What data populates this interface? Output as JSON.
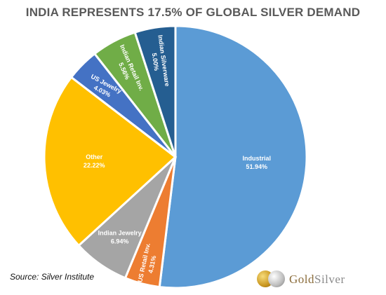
{
  "chart_data": {
    "type": "pie",
    "title": "INDIA REPRESENTS 17.5% OF GLOBAL SILVER DEMAND",
    "slices": [
      {
        "label": "Industrial",
        "value_label": "51.94%",
        "value": 51.94,
        "color": "#5b9bd5"
      },
      {
        "label": "US Retail Inv.",
        "value_label": "4.31%",
        "value": 4.31,
        "color": "#ed7d31"
      },
      {
        "label": "Indian Jewelry",
        "value_label": "6.94%",
        "value": 6.94,
        "color": "#a5a5a5"
      },
      {
        "label": "Other",
        "value_label": "22.22%",
        "value": 22.22,
        "color": "#ffc000"
      },
      {
        "label": "US Jewelry",
        "value_label": "4.03%",
        "value": 4.03,
        "color": "#4472c4"
      },
      {
        "label": "Indian Retail Inv.",
        "value_label": "5.56%",
        "value": 5.56,
        "color": "#70ad47"
      },
      {
        "label": "Indian Silverware",
        "value_label": "5.00%",
        "value": 5.0,
        "color": "#255e91"
      }
    ],
    "legend": "none"
  },
  "source": "Source: Silver Institute",
  "logo": {
    "part1": "Gold",
    "part2": "Silver"
  }
}
